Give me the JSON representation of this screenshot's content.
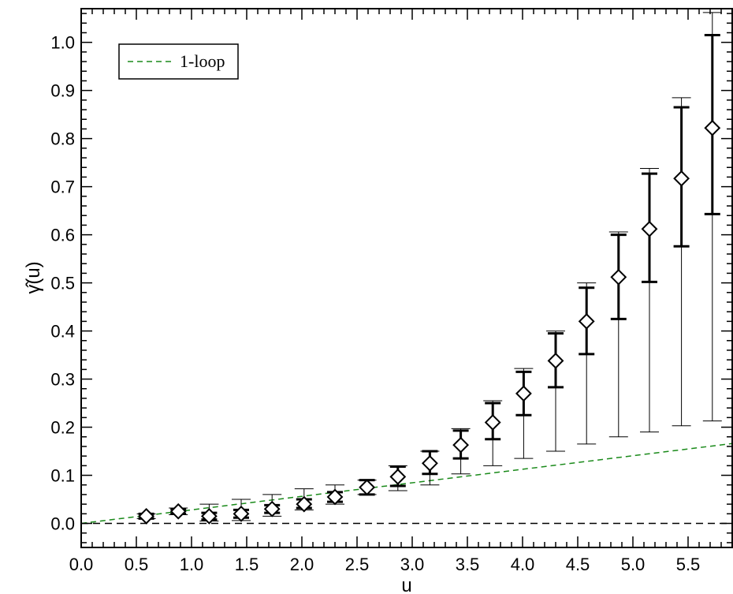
{
  "chart_data": {
    "type": "scatter",
    "xlabel": "u",
    "ylabel": "γ̂(u)",
    "xlim": [
      0.0,
      5.9
    ],
    "ylim": [
      -0.05,
      1.07
    ],
    "x_ticks": [
      "0.0",
      "0.5",
      "1.0",
      "1.5",
      "2.0",
      "2.5",
      "3.0",
      "3.5",
      "4.0",
      "4.5",
      "5.0",
      "5.5"
    ],
    "x_tick_values": [
      0.0,
      0.5,
      1.0,
      1.5,
      2.0,
      2.5,
      3.0,
      3.5,
      4.0,
      4.5,
      5.0,
      5.5
    ],
    "y_ticks": [
      "0.0",
      "0.1",
      "0.2",
      "0.3",
      "0.4",
      "0.5",
      "0.6",
      "0.7",
      "0.8",
      "0.9",
      "1.0"
    ],
    "y_tick_values": [
      0.0,
      0.1,
      0.2,
      0.3,
      0.4,
      0.5,
      0.6,
      0.7,
      0.8,
      0.9,
      1.0
    ],
    "grid": false,
    "legend_position": "top-left",
    "reference_line": {
      "y": 0.0,
      "style": "dashed",
      "color": "#000000"
    },
    "series": [
      {
        "name": "1-loop",
        "kind": "line",
        "style": "dashed",
        "color": "#1a8a1a",
        "x": [
          0.0,
          5.9
        ],
        "y": [
          0.0,
          0.166
        ]
      },
      {
        "kind": "points",
        "marker": "diamond",
        "color": "#000000",
        "x": [
          0.59,
          0.88,
          1.16,
          1.45,
          1.73,
          2.02,
          2.3,
          2.59,
          2.87,
          3.16,
          3.44,
          3.73,
          4.01,
          4.3,
          4.58,
          4.87,
          5.15,
          5.44,
          5.72
        ],
        "y": [
          0.015,
          0.025,
          0.015,
          0.02,
          0.03,
          0.04,
          0.055,
          0.075,
          0.097,
          0.125,
          0.163,
          0.21,
          0.27,
          0.338,
          0.42,
          0.512,
          0.612,
          0.717,
          0.822
        ],
        "stat_err_low": [
          0.01,
          0.02,
          0.008,
          0.012,
          0.022,
          0.032,
          0.045,
          0.06,
          0.078,
          0.103,
          0.135,
          0.175,
          0.225,
          0.283,
          0.352,
          0.425,
          0.502,
          0.576,
          0.643
        ],
        "stat_err_high": [
          0.02,
          0.03,
          0.022,
          0.028,
          0.038,
          0.05,
          0.065,
          0.09,
          0.118,
          0.15,
          0.193,
          0.25,
          0.315,
          0.395,
          0.49,
          0.6,
          0.727,
          0.865,
          1.015
        ],
        "sys_err_low": [
          0.01,
          0.018,
          0.005,
          0.006,
          0.015,
          0.028,
          0.04,
          0.06,
          0.068,
          0.08,
          0.103,
          0.12,
          0.135,
          0.15,
          0.165,
          0.18,
          0.19,
          0.203,
          0.213
        ],
        "sys_err_high": [
          0.02,
          0.032,
          0.04,
          0.05,
          0.06,
          0.072,
          0.08,
          0.09,
          0.12,
          0.15,
          0.197,
          0.255,
          0.322,
          0.4,
          0.5,
          0.606,
          0.738,
          0.885,
          1.062
        ]
      }
    ]
  }
}
